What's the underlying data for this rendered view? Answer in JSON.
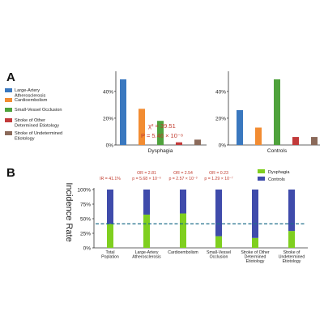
{
  "chart_data": [
    {
      "panel": "A",
      "type": "bar",
      "groups": [
        "Dysphagia",
        "Controls"
      ],
      "yticks": [
        "0%",
        "20%",
        "40%"
      ],
      "ylim": [
        0,
        55
      ],
      "series": [
        {
          "name": "Large-Artery Atherosclerosis",
          "color": "#3a78bf",
          "values": [
            49,
            26
          ]
        },
        {
          "name": "Cardioembolism",
          "color": "#f28c32",
          "values": [
            27,
            13
          ]
        },
        {
          "name": "Small-Vessel Occlusion",
          "color": "#4fa23c",
          "values": [
            18,
            49
          ]
        },
        {
          "name": "Stroke of Other Determined Etiotology",
          "color": "#c23a3a",
          "values": [
            2,
            6
          ]
        },
        {
          "name": "Stroke of Undetermined Etiotology",
          "color": "#8b6a5a",
          "values": [
            4,
            6
          ]
        }
      ],
      "annotation": {
        "chi": "χ² = 39.51",
        "p": "P = 5.46 × 10⁻⁸"
      }
    },
    {
      "panel": "B",
      "type": "bar",
      "stacked": true,
      "ylabel": "Incidence Rate",
      "yticks": [
        "0%",
        "25%",
        "50%",
        "75%",
        "100%"
      ],
      "ylim": [
        0,
        100
      ],
      "categories": [
        [
          "Total",
          "Poplation"
        ],
        [
          "Large-Artery",
          "Atherosclerosis"
        ],
        [
          "Cardioembolism"
        ],
        [
          "Small-Vessel",
          "Occlusion"
        ],
        [
          "Stroke of Other",
          "Determined",
          "Etiotology"
        ],
        [
          "Stroke of",
          "Undetermined",
          "Etiotology"
        ]
      ],
      "series": [
        {
          "name": "Dysphagia",
          "color": "#7fcf1f",
          "values": [
            41,
            57,
            59,
            20,
            17,
            29
          ]
        },
        {
          "name": "Controls",
          "color": "#3f4bab",
          "values": [
            59,
            43,
            41,
            80,
            83,
            71
          ]
        }
      ],
      "reference_line": 41.1,
      "annotations": [
        {
          "top": "",
          "bottom": "IR = 41.1%"
        },
        {
          "top": "OR = 2.81",
          "bottom": "p = 5.68 × 10⁻⁶"
        },
        {
          "top": "OR = 2.54",
          "bottom": "p = 2.57 × 10⁻³"
        },
        {
          "top": "OR = 0.23",
          "bottom": "p = 1.29 × 10⁻⁷"
        }
      ]
    }
  ],
  "labels": {
    "panel_a": "A",
    "panel_b": "B"
  }
}
